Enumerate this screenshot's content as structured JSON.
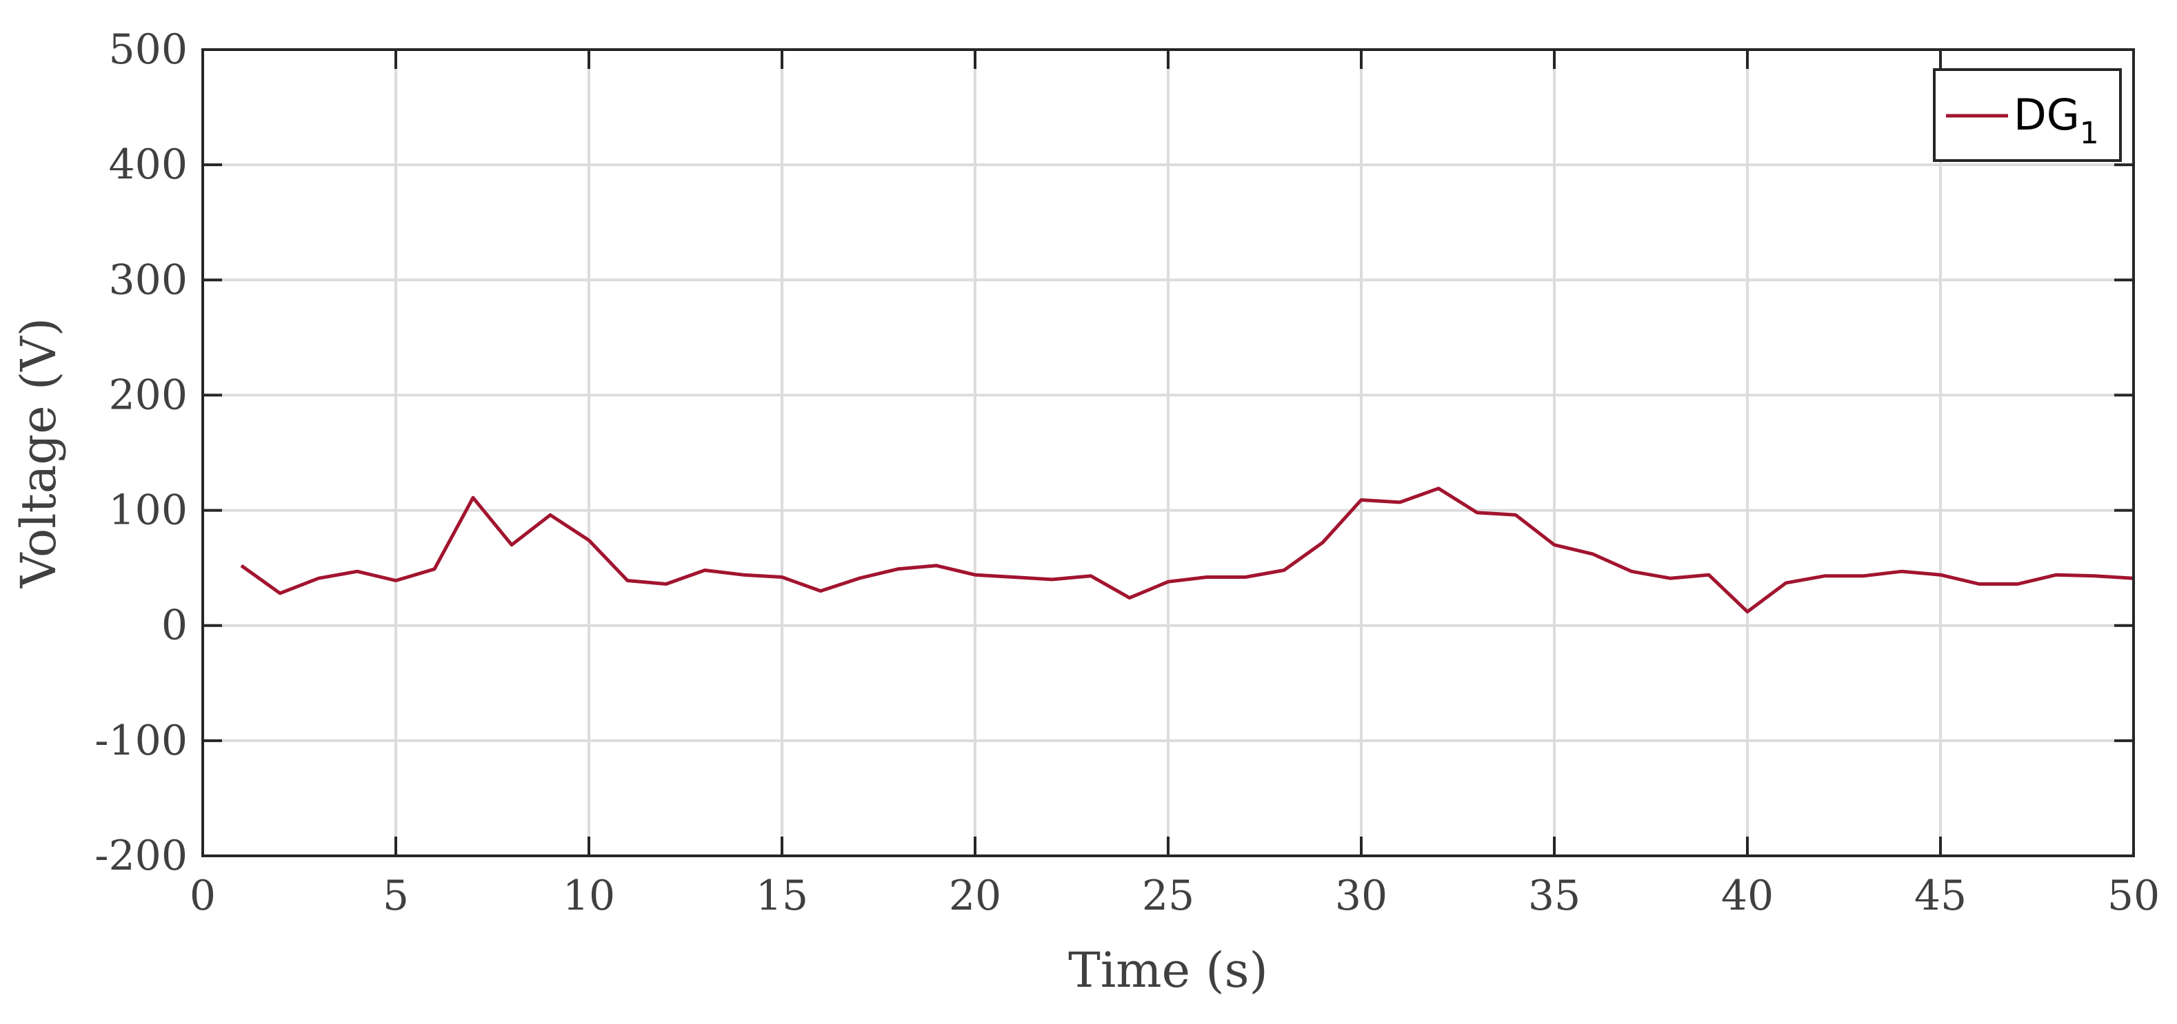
{
  "chart_data": {
    "type": "line",
    "title": "",
    "xlabel": "Time (s)",
    "ylabel": "Voltage (V)",
    "xlim": [
      0,
      50
    ],
    "ylim": [
      -200,
      500
    ],
    "xticks": [
      0,
      5,
      10,
      15,
      20,
      25,
      30,
      35,
      40,
      45,
      50
    ],
    "yticks": [
      -200,
      -100,
      0,
      100,
      200,
      300,
      400,
      500
    ],
    "grid": true,
    "legend_position": "top-right",
    "legend": {
      "base": "DG",
      "sub": "1"
    },
    "series": [
      {
        "name": "DG1",
        "color": "#a2142f",
        "x": [
          1,
          2,
          3,
          4,
          5,
          6,
          7,
          8,
          9,
          10,
          11,
          12,
          13,
          14,
          15,
          16,
          17,
          18,
          19,
          20,
          21,
          22,
          23,
          24,
          25,
          26,
          27,
          28,
          29,
          30,
          31,
          32,
          33,
          34,
          35,
          36,
          37,
          38,
          39,
          40,
          41,
          42,
          43,
          44,
          45,
          46,
          47,
          48,
          49,
          50
        ],
        "y": [
          52,
          28,
          41,
          47,
          39,
          49,
          111,
          70,
          96,
          74,
          39,
          36,
          48,
          44,
          42,
          30,
          41,
          49,
          52,
          44,
          42,
          40,
          43,
          24,
          38,
          42,
          42,
          48,
          72,
          109,
          107,
          119,
          98,
          96,
          70,
          62,
          47,
          41,
          44,
          12,
          37,
          43,
          43,
          47,
          44,
          36,
          36,
          44,
          43,
          41
        ]
      }
    ]
  }
}
